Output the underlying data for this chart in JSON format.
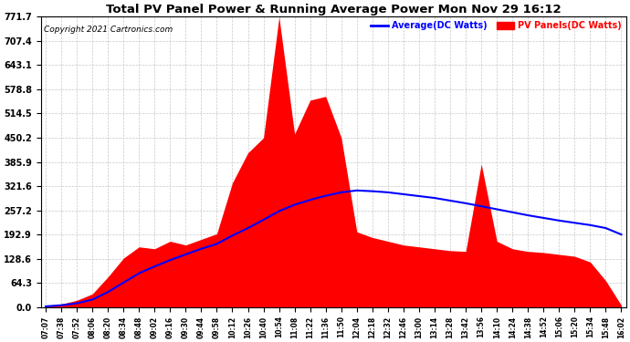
{
  "title": "Total PV Panel Power & Running Average Power Mon Nov 29 16:12",
  "copyright": "Copyright 2021 Cartronics.com",
  "legend_avg": "Average(DC Watts)",
  "legend_pv": "PV Panels(DC Watts)",
  "ymax": 771.7,
  "ymin": 0.0,
  "yticks": [
    0.0,
    64.3,
    128.6,
    192.9,
    257.2,
    321.6,
    385.9,
    450.2,
    514.5,
    578.8,
    643.1,
    707.4,
    771.7
  ],
  "xtick_labels": [
    "07:07",
    "07:38",
    "07:52",
    "08:06",
    "08:20",
    "08:34",
    "08:48",
    "09:02",
    "09:16",
    "09:30",
    "09:44",
    "09:58",
    "10:12",
    "10:26",
    "10:40",
    "10:54",
    "11:08",
    "11:22",
    "11:36",
    "11:50",
    "12:04",
    "12:18",
    "12:32",
    "12:46",
    "13:00",
    "13:14",
    "13:28",
    "13:42",
    "13:56",
    "14:10",
    "14:24",
    "14:38",
    "14:52",
    "15:06",
    "15:20",
    "15:34",
    "15:48",
    "16:02"
  ],
  "bg_color": "#ffffff",
  "grid_color": "#c8c8c8",
  "fill_color": "#ff0000",
  "avg_line_color": "#0000ff",
  "title_color": "#000000",
  "copyright_color": "#000000",
  "pv_data": [
    2,
    8,
    18,
    35,
    80,
    130,
    160,
    155,
    175,
    165,
    180,
    195,
    330,
    410,
    450,
    771,
    460,
    550,
    560,
    450,
    200,
    185,
    175,
    165,
    160,
    155,
    150,
    148,
    380,
    175,
    155,
    148,
    145,
    140,
    135,
    120,
    70,
    5
  ],
  "avg_data": [
    2,
    5,
    10,
    20,
    40,
    65,
    90,
    108,
    125,
    140,
    155,
    168,
    190,
    210,
    232,
    255,
    272,
    285,
    296,
    305,
    310,
    308,
    305,
    300,
    295,
    290,
    283,
    276,
    268,
    260,
    252,
    244,
    237,
    230,
    224,
    218,
    210,
    193
  ]
}
